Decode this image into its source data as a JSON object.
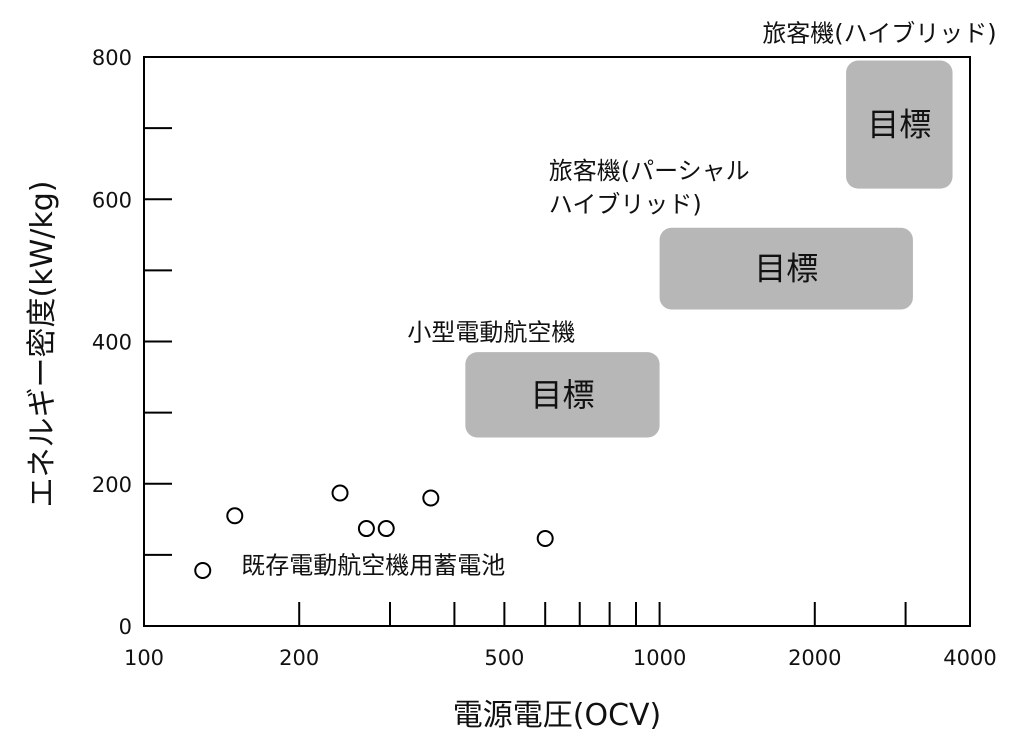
{
  "chart_data": {
    "type": "scatter",
    "x_scale": "log",
    "xlabel": "電源電圧(OCV)",
    "ylabel": "エネルギー密度(kW/kg)",
    "xlim": [
      100,
      4000
    ],
    "ylim": [
      0,
      800
    ],
    "x_ticks": [
      100,
      200,
      500,
      1000,
      2000,
      4000
    ],
    "x_tick_labels": [
      "100",
      "200",
      "500",
      "1000",
      "2000",
      "4000"
    ],
    "x_minor_ticks": [
      300,
      400,
      600,
      700,
      800,
      900,
      3000
    ],
    "y_ticks": [
      0,
      200,
      400,
      600,
      800
    ],
    "y_tick_labels": [
      "0",
      "200",
      "400",
      "600",
      "800"
    ],
    "y_minor_ticks": [
      100,
      300,
      500,
      700
    ],
    "grid": false,
    "series": [
      {
        "name": "既存電動航空機用蓄電池",
        "points": [
          {
            "x": 130,
            "y": 78
          },
          {
            "x": 150,
            "y": 155
          },
          {
            "x": 240,
            "y": 187
          },
          {
            "x": 270,
            "y": 137
          },
          {
            "x": 295,
            "y": 137
          },
          {
            "x": 360,
            "y": 180
          },
          {
            "x": 600,
            "y": 123
          }
        ]
      }
    ],
    "target_regions": [
      {
        "label": "目標",
        "group_label": "小型電動航空機",
        "x_range": [
          420,
          1000
        ],
        "y_range": [
          265,
          385
        ]
      },
      {
        "label": "目標",
        "group_label": "旅客機(パーシャルハイブリッド)",
        "x_range": [
          1000,
          3100
        ],
        "y_range": [
          445,
          560
        ]
      },
      {
        "label": "目標",
        "group_label": "旅客機(ハイブリッド)",
        "x_range": [
          2300,
          3700
        ],
        "y_range": [
          615,
          795
        ]
      }
    ],
    "annotations": [
      {
        "text": "既存電動航空機用蓄電池",
        "x": 200,
        "y": 82
      },
      {
        "text": "小型電動航空機",
        "x": 420,
        "y": 410
      },
      {
        "text": "旅客機(パーシャル",
        "x": 790,
        "y": 637
      },
      {
        "text": "ハイブリッド)",
        "x": 790,
        "y": 590
      },
      {
        "text": "旅客機(ハイブリッド)",
        "x": 2050,
        "y": 830
      }
    ],
    "colors": {
      "axis": "#000000",
      "region_fill": "#b7b7b7",
      "marker_stroke": "#000000",
      "marker_fill": "#ffffff"
    }
  }
}
